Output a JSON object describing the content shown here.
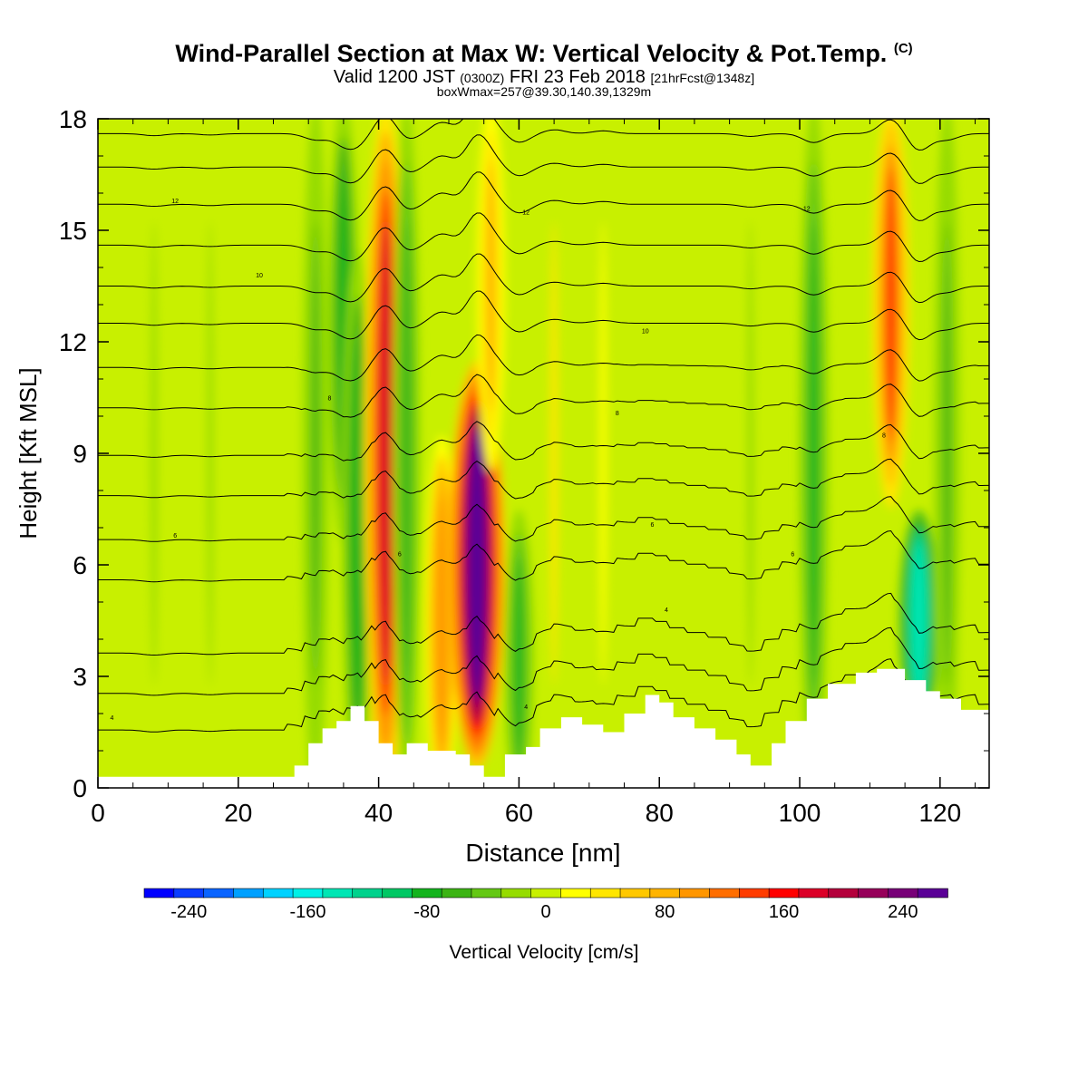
{
  "title": {
    "main": "Wind-Parallel Section at Max W: Vertical Velocity & Pot.Temp.",
    "copyright": "(C)",
    "valid_prefix": "Valid 1200 JST",
    "valid_utc": "(0300Z)",
    "valid_date": "FRI 23 Feb 2018",
    "forecast": "[21hrFcst@1348z]",
    "box": "boxWmax=257@39.30,140.39,1329m"
  },
  "chart_data": {
    "type": "heatmap",
    "xlabel": "Distance [nm]",
    "ylabel": "Height [Kft MSL]",
    "xlim": [
      0,
      127
    ],
    "ylim": [
      0,
      18
    ],
    "x_ticks": [
      "0",
      "20",
      "40",
      "60",
      "80",
      "100",
      "120"
    ],
    "y_ticks": [
      "0",
      "3",
      "6",
      "9",
      "12",
      "15",
      "18"
    ],
    "colorbar": {
      "label": "Vertical Velocity [cm/s]",
      "ticks": [
        "-240",
        "-160",
        "-80",
        "0",
        "80",
        "160",
        "240"
      ],
      "range": [
        -270,
        270
      ],
      "colors": [
        "#0000ff",
        "#0a3cff",
        "#0a64ff",
        "#00a0ff",
        "#00d2ff",
        "#00f0e6",
        "#00e6b4",
        "#00d28c",
        "#00c864",
        "#14b41e",
        "#3cb414",
        "#64c814",
        "#96dc00",
        "#c8f000",
        "#ffff00",
        "#ffe600",
        "#ffc800",
        "#ffb400",
        "#ff9600",
        "#ff6e00",
        "#ff3c00",
        "#ff0000",
        "#dc0028",
        "#b4003c",
        "#96005a",
        "#780078",
        "#5a0096"
      ]
    },
    "velocity_columns": [
      {
        "x": 8,
        "w": -18
      },
      {
        "x": 16,
        "w": -12
      },
      {
        "x": 31,
        "w": -55
      },
      {
        "x": 35,
        "w": -85,
        "zmin": 7,
        "zmax": 18
      },
      {
        "x": 37,
        "w": -90,
        "zmin": 0,
        "zmax": 14
      },
      {
        "x": 41,
        "w": 170
      },
      {
        "x": 44,
        "w": -60
      },
      {
        "x": 49,
        "w": 100,
        "zmin": 0,
        "zmax": 9
      },
      {
        "x": 54,
        "w": 257,
        "zmin": 1,
        "zmax": 11
      },
      {
        "x": 56,
        "w": 70,
        "zmin": 9,
        "zmax": 18
      },
      {
        "x": 60,
        "w": -80,
        "zmin": 0,
        "zmax": 7
      },
      {
        "x": 65,
        "w": 35
      },
      {
        "x": 72,
        "w": 25
      },
      {
        "x": 93,
        "w": -25
      },
      {
        "x": 102,
        "w": -80
      },
      {
        "x": 113,
        "w": 130,
        "zmin": 8,
        "zmax": 18
      },
      {
        "x": 117,
        "w": -150,
        "zmin": 2,
        "zmax": 7
      },
      {
        "x": 121,
        "w": -55
      }
    ],
    "terrain_kft": [
      [
        0,
        0.3
      ],
      [
        25,
        0.3
      ],
      [
        28,
        0.6
      ],
      [
        30,
        1.2
      ],
      [
        32,
        1.6
      ],
      [
        34,
        1.8
      ],
      [
        36,
        2.2
      ],
      [
        38,
        1.8
      ],
      [
        40,
        1.2
      ],
      [
        42,
        0.9
      ],
      [
        44,
        1.2
      ],
      [
        47,
        1.0
      ],
      [
        51,
        0.9
      ],
      [
        53,
        0.6
      ],
      [
        55,
        0.3
      ],
      [
        58,
        0.9
      ],
      [
        61,
        1.1
      ],
      [
        63,
        1.6
      ],
      [
        66,
        1.9
      ],
      [
        69,
        1.7
      ],
      [
        72,
        1.5
      ],
      [
        75,
        2.0
      ],
      [
        78,
        2.5
      ],
      [
        80,
        2.3
      ],
      [
        82,
        1.9
      ],
      [
        85,
        1.6
      ],
      [
        88,
        1.3
      ],
      [
        91,
        0.9
      ],
      [
        93,
        0.6
      ],
      [
        96,
        1.2
      ],
      [
        98,
        1.8
      ],
      [
        101,
        2.4
      ],
      [
        104,
        2.8
      ],
      [
        108,
        3.1
      ],
      [
        111,
        3.2
      ],
      [
        115,
        2.9
      ],
      [
        118,
        2.6
      ],
      [
        120,
        2.4
      ],
      [
        123,
        2.1
      ],
      [
        127,
        1.6
      ]
    ],
    "theta_contours": [
      {
        "base": 1.4,
        "label": "4",
        "label_x": 2,
        "label_y": 1.9
      },
      {
        "base": 2.4,
        "label": "4",
        "label_x": 61,
        "label_y": 2.2
      },
      {
        "base": 3.5,
        "label": "4",
        "label_x": 81,
        "label_y": 4.8
      },
      {
        "base": 5.5,
        "label": "6",
        "label_x": 43,
        "label_y": 6.3
      },
      {
        "base": 6.6,
        "label": "6",
        "label_x": 99,
        "label_y": 6.3
      },
      {
        "base": 7.8,
        "label": "6",
        "label_x": 79,
        "label_y": 7.1
      },
      {
        "base": 8.9,
        "label": "6",
        "label_x": 11,
        "label_y": 6.8
      },
      {
        "base": 10.2,
        "label": "8",
        "label_x": 74,
        "label_y": 10.1
      },
      {
        "base": 11.3,
        "label": "8",
        "label_x": 112,
        "label_y": 9.5
      },
      {
        "base": 12.5,
        "label": "8",
        "label_x": 33,
        "label_y": 10.5
      },
      {
        "base": 13.5,
        "label": "10",
        "label_x": 78,
        "label_y": 12.3
      },
      {
        "base": 14.6,
        "label": "10",
        "label_x": 23,
        "label_y": 13.8
      },
      {
        "base": 15.7,
        "label": "12",
        "label_x": 11,
        "label_y": 15.8
      },
      {
        "base": 16.7,
        "label": "12",
        "label_x": 101,
        "label_y": 15.6
      },
      {
        "base": 17.6,
        "label": "12",
        "label_x": 61,
        "label_y": 15.5
      }
    ]
  }
}
